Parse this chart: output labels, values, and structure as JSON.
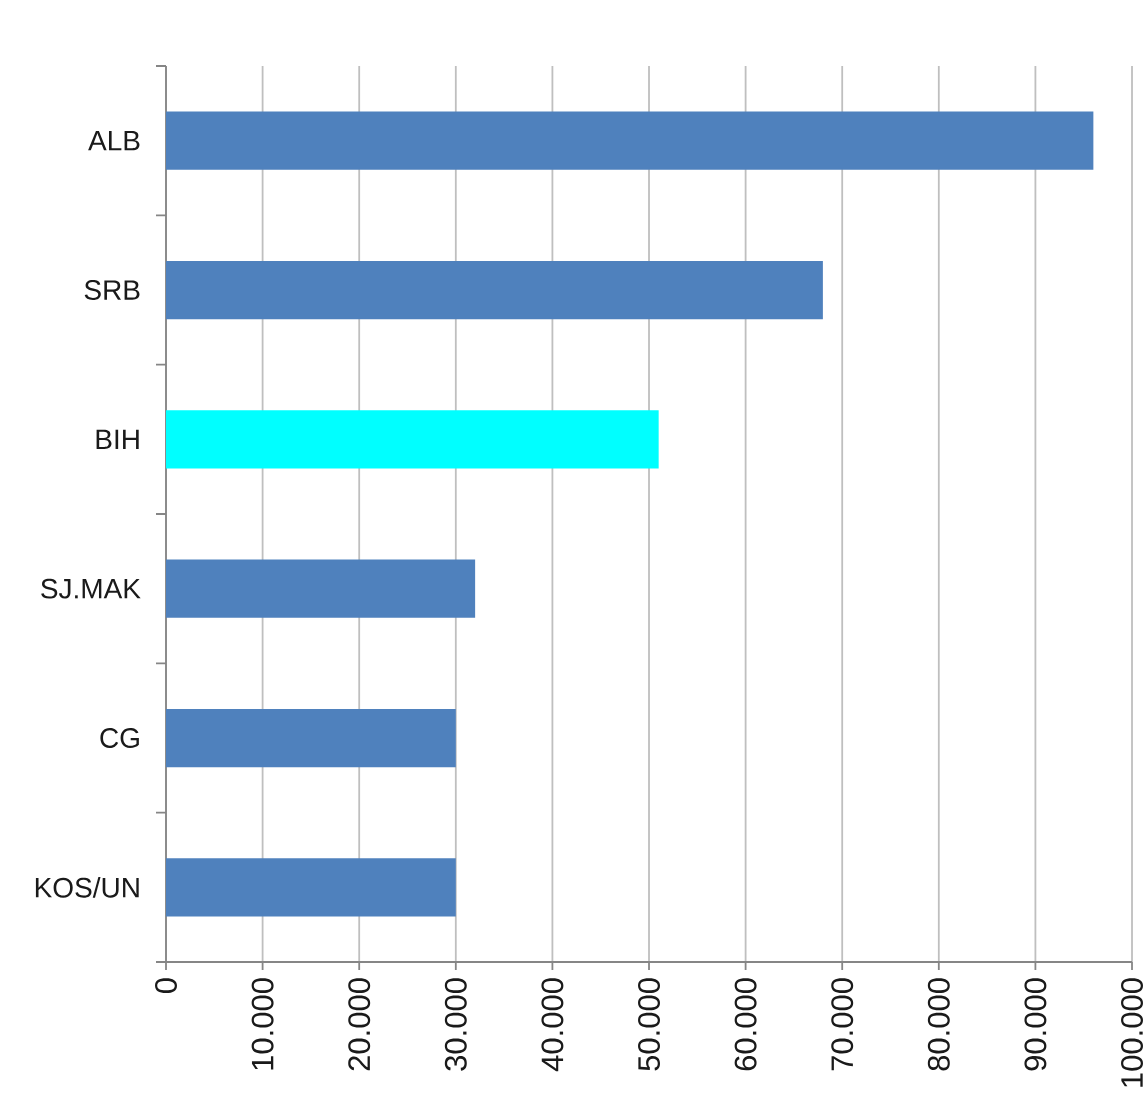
{
  "chart_data": {
    "type": "bar",
    "orientation": "horizontal",
    "categories": [
      "ALB",
      "SRB",
      "BIH",
      "SJ.MAK",
      "CG",
      "KOS/UN"
    ],
    "values": [
      96000,
      68000,
      51000,
      32000,
      30000,
      30000
    ],
    "colors": [
      "#4f81bd",
      "#4f81bd",
      "#00ffff",
      "#4f81bd",
      "#4f81bd",
      "#4f81bd"
    ],
    "xlim": [
      0,
      100000
    ],
    "xticks": [
      0,
      {
        "value": 10000,
        "label": "10.000"
      },
      {
        "value": 20000,
        "label": "20.000"
      },
      {
        "value": 30000,
        "label": "30.000"
      },
      {
        "value": 40000,
        "label": "40.000"
      },
      {
        "value": 50000,
        "label": "50.000"
      },
      {
        "value": 60000,
        "label": "60.000"
      },
      {
        "value": 70000,
        "label": "70.000"
      },
      {
        "value": 80000,
        "label": "80.000"
      },
      {
        "value": 90000,
        "label": "90.000"
      },
      {
        "value": 100000,
        "label": "100.000"
      }
    ],
    "grid": "x"
  }
}
